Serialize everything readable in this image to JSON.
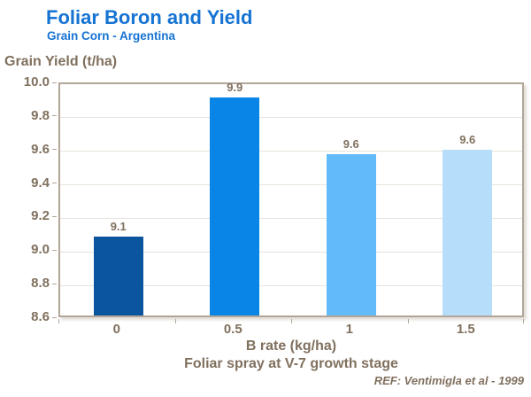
{
  "header": {
    "title": "Foliar Boron and Yield",
    "subtitle": "Grain Corn - Argentina"
  },
  "footer": {
    "ref": "REF: Ventimigla et al - 1999"
  },
  "colors": {
    "title_blue": "#1573D3",
    "axis_text_brown": "#80705E",
    "gridline": "#E8E3DC",
    "plot_border": "#B2A699",
    "bar_colors": [
      "#0B549E",
      "#0885E6",
      "#61BAF9",
      "#B6DEFB"
    ]
  },
  "chart_data": {
    "type": "bar",
    "title": "Foliar Boron and Yield",
    "subtitle": "Grain Corn - Argentina",
    "categories": [
      "0",
      "0.5",
      "1",
      "1.5"
    ],
    "values": [
      9.1,
      9.9,
      9.6,
      9.6
    ],
    "bar_value_labels": [
      "9.1",
      "9.9",
      "9.6",
      "9.6"
    ],
    "bar_top_estimates": [
      9.07,
      9.9,
      9.56,
      9.59
    ],
    "bar_colors": [
      "#0B549E",
      "#0885E6",
      "#61BAF9",
      "#B6DEFB"
    ],
    "xlabel": "B rate (kg/ha)",
    "xlabel_line2": "Foliar spray at V-7 growth stage",
    "ylabel": "Grain Yield (t/ha)",
    "ylim": [
      8.6,
      10.0
    ],
    "yticks": [
      "10.0",
      "9.8",
      "9.6",
      "9.4",
      "9.2",
      "9.0",
      "8.8",
      "8.6"
    ],
    "grid": true,
    "legend": false
  }
}
